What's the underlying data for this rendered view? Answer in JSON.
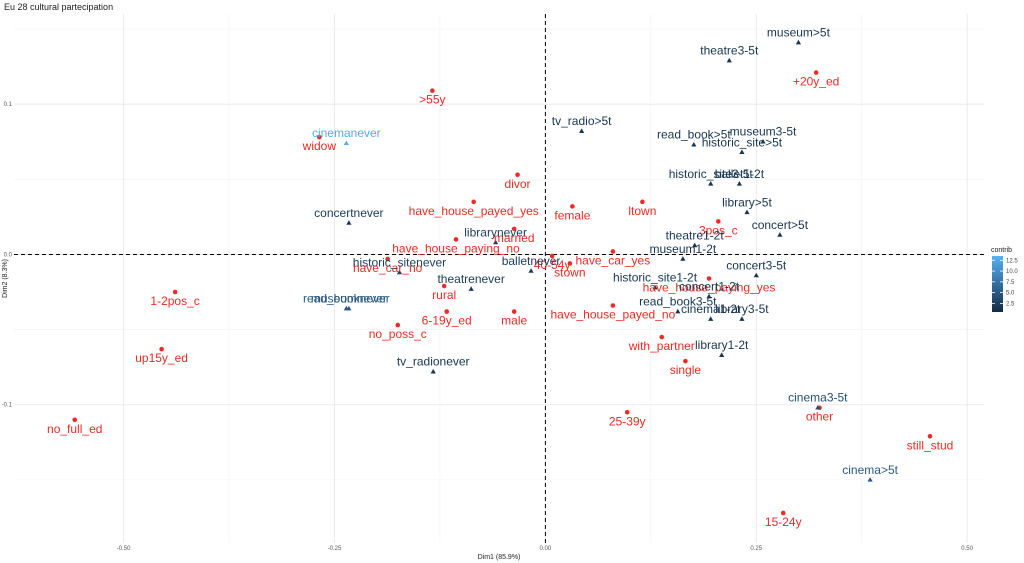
{
  "chart_data": {
    "type": "scatter",
    "title": "Eu 28 cultural partecipation",
    "xlabel": "Dim1 (85.9%)",
    "ylabel": "Dim2 (8.3%)",
    "xlim": [
      -0.63,
      0.52
    ],
    "ylim": [
      -0.192,
      0.16
    ],
    "xticks": [
      -0.5,
      -0.25,
      0.0,
      0.25,
      0.5
    ],
    "xtick_labels": [
      "-0.50",
      "-0.25",
      "0.00",
      "0.25",
      "0.50"
    ],
    "yticks": [
      -0.1,
      0.0,
      0.1
    ],
    "ytick_labels": [
      "-0.1",
      "0.0",
      "0.1"
    ],
    "grid": true,
    "reference_lines": {
      "x": 0,
      "y": 0,
      "style": "dashed"
    },
    "legend": {
      "title": "contrib",
      "position": "right",
      "ticks": [
        2.5,
        5.0,
        7.5,
        10.0,
        12.5
      ],
      "tick_labels": [
        "2.5",
        "5.0",
        "7.5",
        "10.0",
        "12.5"
      ],
      "range": [
        0.5,
        13.5
      ]
    },
    "colors": {
      "individuals": "#ee2a24",
      "low_contrib": "#132b43",
      "high_contrib": "#56b1f7"
    },
    "individuals": [
      {
        "label": "widow",
        "x": -0.268,
        "y": 0.078
      },
      {
        "label": ">55y",
        "x": -0.134,
        "y": 0.109
      },
      {
        "label": "+20y_ed",
        "x": 0.321,
        "y": 0.121
      },
      {
        "label": "divor",
        "x": -0.033,
        "y": 0.053
      },
      {
        "label": "have_house_payed_yes",
        "x": -0.085,
        "y": 0.035
      },
      {
        "label": "female",
        "x": 0.032,
        "y": 0.032
      },
      {
        "label": "ltown",
        "x": 0.115,
        "y": 0.035
      },
      {
        "label": "married",
        "x": -0.037,
        "y": 0.017
      },
      {
        "label": "have_house_paying_no",
        "x": -0.106,
        "y": 0.01
      },
      {
        "label": "3pos_c",
        "x": 0.205,
        "y": 0.022
      },
      {
        "label": "40-54y",
        "x": 0.008,
        "y": -0.001
      },
      {
        "label": "have_car_yes",
        "x": 0.08,
        "y": 0.002
      },
      {
        "label": "have_car_no",
        "x": -0.187,
        "y": -0.003
      },
      {
        "label": "stown",
        "x": 0.029,
        "y": -0.006
      },
      {
        "label": "rural",
        "x": -0.12,
        "y": -0.021
      },
      {
        "label": "1-2pos_c",
        "x": -0.439,
        "y": -0.025
      },
      {
        "label": "have_house_paying_yes",
        "x": 0.194,
        "y": -0.016
      },
      {
        "label": "have_house_payed_no",
        "x": 0.08,
        "y": -0.034
      },
      {
        "label": "6-19y_ed",
        "x": -0.117,
        "y": -0.038
      },
      {
        "label": "male",
        "x": -0.037,
        "y": -0.038
      },
      {
        "label": "with_partner",
        "x": 0.138,
        "y": -0.055
      },
      {
        "label": "no_poss_c",
        "x": -0.175,
        "y": -0.047
      },
      {
        "label": "up15y_ed",
        "x": -0.455,
        "y": -0.063
      },
      {
        "label": "single",
        "x": 0.166,
        "y": -0.071
      },
      {
        "label": "25-39y",
        "x": 0.097,
        "y": -0.105
      },
      {
        "label": "no_full_ed",
        "x": -0.558,
        "y": -0.11
      },
      {
        "label": "other",
        "x": 0.325,
        "y": -0.102
      },
      {
        "label": "still_stud",
        "x": 0.456,
        "y": -0.121
      },
      {
        "label": "15-24y",
        "x": 0.282,
        "y": -0.172
      }
    ],
    "variables": [
      {
        "label": "museum>5t",
        "x": 0.3,
        "y": 0.141,
        "contrib": 1.5
      },
      {
        "label": "theatre3-5t",
        "x": 0.218,
        "y": 0.129,
        "contrib": 1.5
      },
      {
        "label": "tv_radio>5t",
        "x": 0.043,
        "y": 0.082,
        "contrib": 1.5
      },
      {
        "label": "read_book>5t",
        "x": 0.176,
        "y": 0.073,
        "contrib": 1.5
      },
      {
        "label": "museum3-5t",
        "x": 0.258,
        "y": 0.075,
        "contrib": 1.5
      },
      {
        "label": "historic_site>5t",
        "x": 0.233,
        "y": 0.068,
        "contrib": 1.5
      },
      {
        "label": "historic_site3-5t",
        "x": 0.196,
        "y": 0.047,
        "contrib": 1.5
      },
      {
        "label": "ballet1-2t",
        "x": 0.23,
        "y": 0.047,
        "contrib": 1.5
      },
      {
        "label": "library>5t",
        "x": 0.239,
        "y": 0.028,
        "contrib": 1.5
      },
      {
        "label": "concertnever",
        "x": -0.233,
        "y": 0.021,
        "contrib": 2.0
      },
      {
        "label": "theatre1-2t",
        "x": 0.177,
        "y": 0.006,
        "contrib": 1.5
      },
      {
        "label": "concert>5t",
        "x": 0.278,
        "y": 0.013,
        "contrib": 1.5
      },
      {
        "label": "librarynever",
        "x": -0.059,
        "y": 0.008,
        "contrib": 2.5
      },
      {
        "label": "cinemanever",
        "x": -0.236,
        "y": 0.074,
        "contrib": 13.0
      },
      {
        "label": "museum1-2t",
        "x": 0.163,
        "y": -0.003,
        "contrib": 1.5
      },
      {
        "label": "balletnever",
        "x": -0.017,
        "y": -0.011,
        "contrib": 2.0
      },
      {
        "label": "historic_sitenever",
        "x": -0.173,
        "y": -0.012,
        "contrib": 2.5
      },
      {
        "label": "concert3-5t",
        "x": 0.25,
        "y": -0.014,
        "contrib": 1.5
      },
      {
        "label": "theatrenever",
        "x": -0.088,
        "y": -0.023,
        "contrib": 2.0
      },
      {
        "label": "historic_site1-2t",
        "x": 0.13,
        "y": -0.022,
        "contrib": 1.5
      },
      {
        "label": "concert1-2t",
        "x": 0.194,
        "y": -0.028,
        "contrib": 1.5
      },
      {
        "label": "museumnever",
        "x": -0.233,
        "y": -0.036,
        "contrib": 5.0
      },
      {
        "label": "read_booknever",
        "x": -0.236,
        "y": -0.036,
        "contrib": 5.0
      },
      {
        "label": "read_book3-5t",
        "x": 0.157,
        "y": -0.038,
        "contrib": 1.5
      },
      {
        "label": "library3-5t",
        "x": 0.233,
        "y": -0.043,
        "contrib": 1.5
      },
      {
        "label": "cinema1-2t",
        "x": 0.196,
        "y": -0.043,
        "contrib": 1.5
      },
      {
        "label": "library1-2t",
        "x": 0.209,
        "y": -0.067,
        "contrib": 1.5
      },
      {
        "label": "tv_radionever",
        "x": -0.133,
        "y": -0.078,
        "contrib": 1.5
      },
      {
        "label": "cinema3-5t",
        "x": 0.323,
        "y": -0.102,
        "contrib": 4.0
      },
      {
        "label": "cinema>5t",
        "x": 0.385,
        "y": -0.15,
        "contrib": 5.0
      }
    ]
  }
}
